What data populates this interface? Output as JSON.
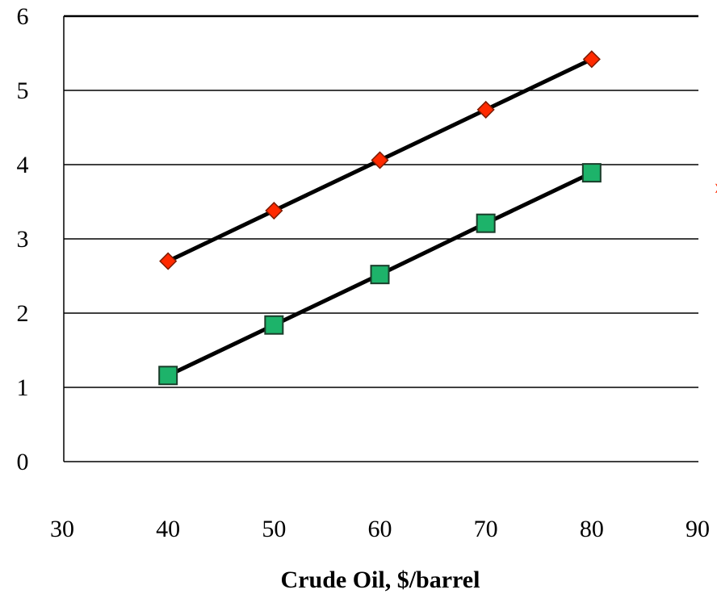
{
  "chart_data": {
    "type": "line",
    "title": "",
    "xlabel": "Crude  Oil, $/barrel",
    "ylabel": "",
    "xlim": [
      30,
      90
    ],
    "ylim": [
      0,
      6
    ],
    "x_ticks": [
      30,
      40,
      50,
      60,
      70,
      80,
      90
    ],
    "y_ticks": [
      0,
      1,
      2,
      3,
      4,
      5,
      6
    ],
    "grid": "horizontal",
    "legend": "none",
    "x": [
      40,
      50,
      60,
      70,
      80
    ],
    "series": [
      {
        "marker": "diamond",
        "color": "#ff2a00",
        "values": [
          2.7,
          3.38,
          4.06,
          4.74,
          5.42
        ]
      },
      {
        "marker": "square",
        "color": "#1db36a",
        "values": [
          1.16,
          1.84,
          2.52,
          3.21,
          3.89
        ]
      }
    ],
    "clipped_annotation": "›"
  }
}
